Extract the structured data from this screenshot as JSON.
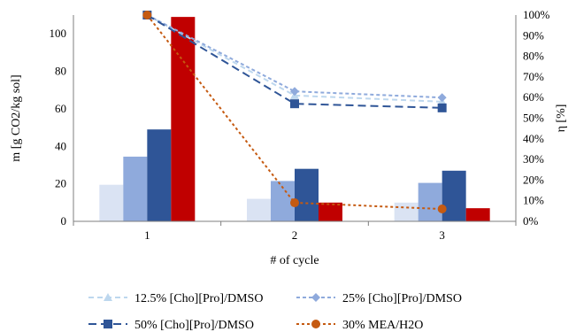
{
  "chart_data": {
    "type": "bar+line",
    "title": "",
    "xlabel": "# of cycle",
    "ylabel_left": "m [g CO2/kg sol]",
    "ylabel_right": "η [%]",
    "categories": [
      "1",
      "2",
      "3"
    ],
    "ylim_left": [
      0,
      110
    ],
    "yticks_left": [
      "0",
      "20",
      "40",
      "60",
      "80",
      "100"
    ],
    "ylim_right": [
      0,
      100
    ],
    "yticks_right": [
      "0%",
      "10%",
      "20%",
      "30%",
      "40%",
      "50%",
      "60%",
      "70%",
      "80%",
      "90%",
      "100%"
    ],
    "grid": false,
    "legend_position": "bottom",
    "bar_series": [
      {
        "color": "#dae3f3",
        "values": [
          19.5,
          12,
          10
        ]
      },
      {
        "color": "#8faadc",
        "values": [
          34.5,
          21.5,
          20.5
        ]
      },
      {
        "color": "#2f5597",
        "values": [
          49,
          28,
          27
        ]
      },
      {
        "color": "#c00000",
        "values": [
          109,
          10,
          7
        ]
      }
    ],
    "line_series": [
      {
        "name": "12.5% [Cho][Pro]/DMSO",
        "color": "#bdd7ee",
        "marker": "triangle",
        "dash": "6,4",
        "values": [
          100,
          61,
          58
        ]
      },
      {
        "name": "25% [Cho][Pro]/DMSO",
        "color": "#8faadc",
        "marker": "diamond",
        "dash": "4,3",
        "values": [
          100,
          63,
          60
        ]
      },
      {
        "name": "50% [Cho][Pro]/DMSO",
        "color": "#2f5597",
        "marker": "square",
        "dash": "9,5",
        "values": [
          100,
          57,
          55
        ]
      },
      {
        "name": "30% MEA/H2O",
        "color": "#c55a11",
        "marker": "circle",
        "dash": "3,3",
        "values": [
          100,
          9,
          6
        ]
      }
    ]
  }
}
